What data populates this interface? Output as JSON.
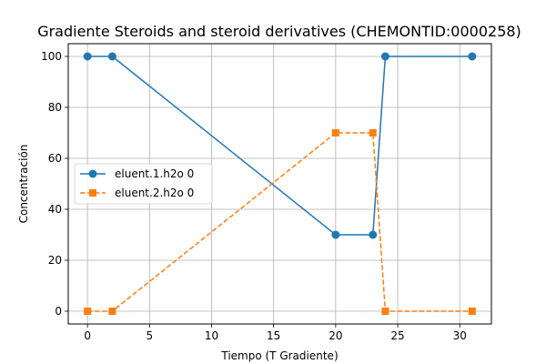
{
  "chart_data": {
    "type": "line",
    "title": "Gradiente Steroids and steroid derivatives (CHEMONTID:0000258)",
    "xlabel": "Tiempo (T Gradiente)",
    "ylabel": "Concentración",
    "xlim": [
      -1.55,
      32.55
    ],
    "ylim": [
      -5,
      105
    ],
    "xticks": [
      0,
      5,
      10,
      15,
      20,
      25,
      30
    ],
    "yticks": [
      0,
      20,
      40,
      60,
      80,
      100
    ],
    "grid": true,
    "legend_position": "center-left",
    "series": [
      {
        "name": "eluent.1.h2o 0",
        "color": "#1f77b4",
        "marker": "circle",
        "linestyle": "solid",
        "x": [
          0,
          2,
          20,
          23,
          24,
          31
        ],
        "y": [
          100,
          100,
          30,
          30,
          100,
          100
        ]
      },
      {
        "name": "eluent.2.h2o 0",
        "color": "#ff7f0e",
        "marker": "square",
        "linestyle": "dashed",
        "x": [
          0,
          2,
          20,
          23,
          24,
          31
        ],
        "y": [
          0,
          0,
          70,
          70,
          0,
          0
        ]
      }
    ]
  }
}
